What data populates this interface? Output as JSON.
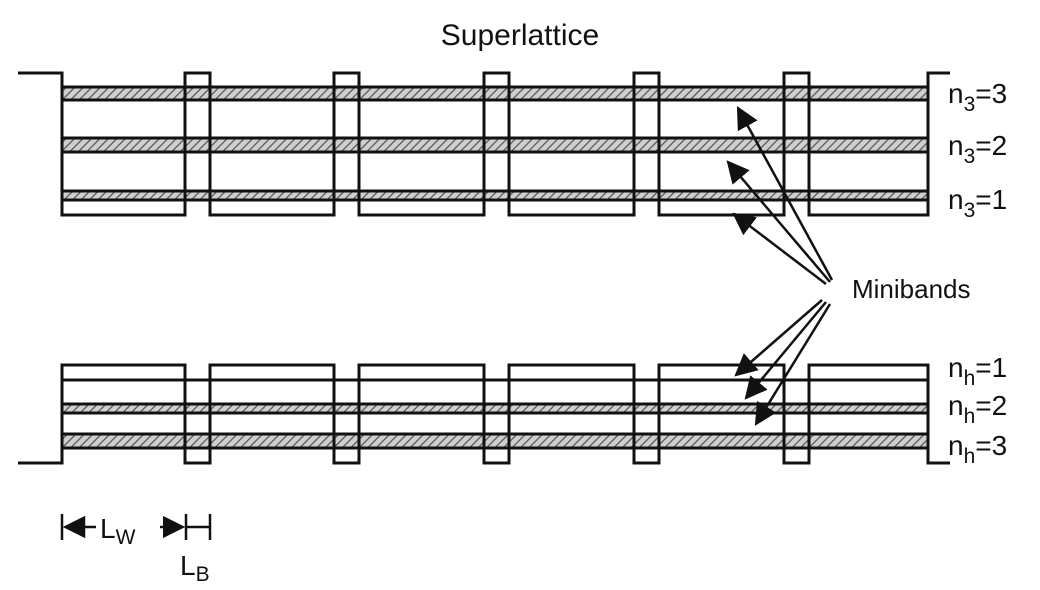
{
  "title": "Superlattice",
  "minibands_label": "Minibands",
  "conduction_levels": [
    {
      "n": "n",
      "sub": "3",
      "eq": "=3"
    },
    {
      "n": "n",
      "sub": "3",
      "eq": "=2"
    },
    {
      "n": "n",
      "sub": "3",
      "eq": "=1"
    }
  ],
  "valence_levels": [
    {
      "n": "n",
      "sub": "h",
      "eq": "=1"
    },
    {
      "n": "n",
      "sub": "h",
      "eq": "=2"
    },
    {
      "n": "n",
      "sub": "h",
      "eq": "=3"
    }
  ],
  "scale": {
    "well_main": "L",
    "well_sub": "W",
    "barrier_main": "L",
    "barrier_sub": "B"
  },
  "colors": {
    "line": "#111111",
    "hatch": "#555555"
  }
}
